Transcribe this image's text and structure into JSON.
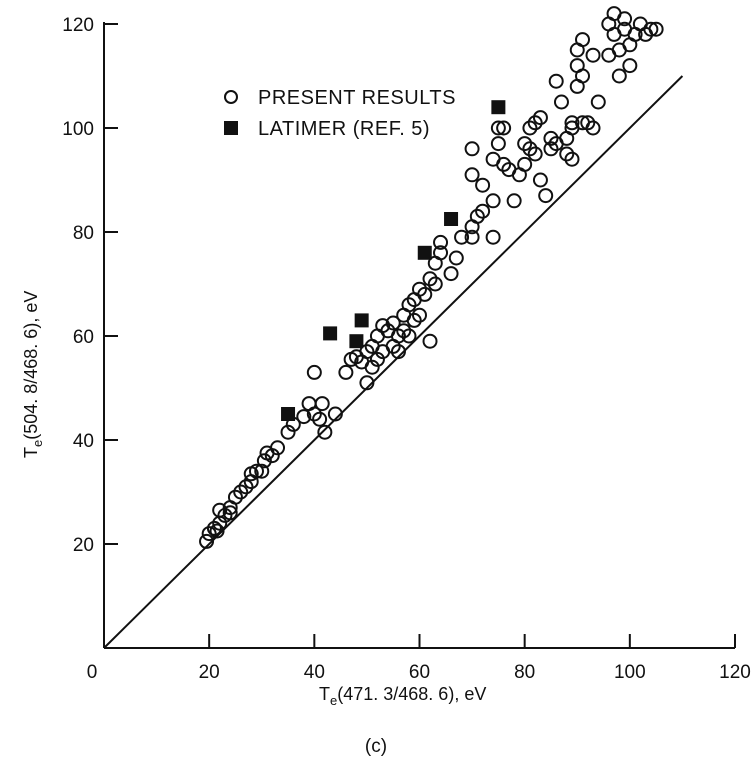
{
  "chart_data": {
    "type": "scatter",
    "x_title_main": "T",
    "x_title_sub": "e",
    "x_title_rest": "(471. 3/468. 6), eV",
    "y_title_main": "T",
    "y_title_sub": "e",
    "y_title_rest": "(504. 8/468. 6), eV",
    "caption": "(c)",
    "xlim": [
      0,
      120
    ],
    "ylim": [
      0,
      120
    ],
    "x_ticks": [
      0,
      20,
      40,
      60,
      80,
      100,
      120
    ],
    "y_ticks": [
      20,
      40,
      60,
      80,
      100,
      120
    ],
    "grid": false,
    "legend_position": "top-left",
    "reference_line": {
      "x": [
        0,
        110
      ],
      "y": [
        0,
        110
      ]
    },
    "series": [
      {
        "name": "PRESENT RESULTS",
        "marker": "open-circle",
        "points": [
          [
            19.5,
            20.5
          ],
          [
            20,
            22
          ],
          [
            21,
            23
          ],
          [
            21.5,
            22.5
          ],
          [
            22,
            24
          ],
          [
            22,
            26.5
          ],
          [
            23,
            25.5
          ],
          [
            24,
            26
          ],
          [
            24,
            27
          ],
          [
            25,
            29
          ],
          [
            26,
            30
          ],
          [
            27,
            31
          ],
          [
            28,
            32
          ],
          [
            28,
            33.5
          ],
          [
            29,
            34
          ],
          [
            30,
            34
          ],
          [
            30.5,
            36
          ],
          [
            31,
            37.5
          ],
          [
            32,
            37
          ],
          [
            33,
            38.5
          ],
          [
            35,
            41.5
          ],
          [
            36,
            43
          ],
          [
            38,
            44.5
          ],
          [
            39,
            47
          ],
          [
            40,
            45
          ],
          [
            40,
            53
          ],
          [
            41,
            44
          ],
          [
            41.5,
            47
          ],
          [
            42,
            41.5
          ],
          [
            44,
            45
          ],
          [
            46,
            53
          ],
          [
            47,
            55.5
          ],
          [
            48,
            56
          ],
          [
            49,
            55
          ],
          [
            50,
            57
          ],
          [
            50,
            51
          ],
          [
            51,
            58
          ],
          [
            51,
            54
          ],
          [
            52,
            60
          ],
          [
            52,
            55.5
          ],
          [
            53,
            57
          ],
          [
            53,
            62
          ],
          [
            54,
            61
          ],
          [
            55,
            58
          ],
          [
            55,
            62.5
          ],
          [
            56,
            57
          ],
          [
            56,
            60
          ],
          [
            57,
            61
          ],
          [
            57,
            64
          ],
          [
            58,
            60
          ],
          [
            58,
            66
          ],
          [
            59,
            63
          ],
          [
            59,
            67
          ],
          [
            60,
            64
          ],
          [
            60,
            69
          ],
          [
            61,
            68
          ],
          [
            62,
            59
          ],
          [
            62,
            71
          ],
          [
            63,
            70
          ],
          [
            63,
            74
          ],
          [
            64,
            76
          ],
          [
            64,
            78
          ],
          [
            66,
            72
          ],
          [
            67,
            75
          ],
          [
            68,
            79
          ],
          [
            70,
            79
          ],
          [
            70,
            81
          ],
          [
            70,
            91
          ],
          [
            70,
            96
          ],
          [
            71,
            83
          ],
          [
            72,
            84
          ],
          [
            72,
            89
          ],
          [
            74,
            79
          ],
          [
            74,
            86
          ],
          [
            74,
            94
          ],
          [
            75,
            97
          ],
          [
            75,
            100
          ],
          [
            76,
            93
          ],
          [
            76,
            100
          ],
          [
            77,
            92
          ],
          [
            78,
            86
          ],
          [
            79,
            91
          ],
          [
            80,
            93
          ],
          [
            80,
            97
          ],
          [
            81,
            100
          ],
          [
            81,
            96
          ],
          [
            82,
            101
          ],
          [
            82,
            95
          ],
          [
            83,
            90
          ],
          [
            83,
            102
          ],
          [
            84,
            87
          ],
          [
            85,
            96
          ],
          [
            85,
            98
          ],
          [
            86,
            109
          ],
          [
            86,
            97
          ],
          [
            87,
            105
          ],
          [
            88,
            98
          ],
          [
            88,
            95
          ],
          [
            89,
            100
          ],
          [
            89,
            94
          ],
          [
            89,
            101
          ],
          [
            90,
            108
          ],
          [
            90,
            112
          ],
          [
            90,
            115
          ],
          [
            91,
            110
          ],
          [
            91,
            101
          ],
          [
            91,
            117
          ],
          [
            92,
            101
          ],
          [
            93,
            100
          ],
          [
            93,
            114
          ],
          [
            94,
            105
          ],
          [
            96,
            114
          ],
          [
            96,
            120
          ],
          [
            97,
            122
          ],
          [
            97,
            118
          ],
          [
            98,
            110
          ],
          [
            98,
            115
          ],
          [
            99,
            119
          ],
          [
            99,
            121
          ],
          [
            100,
            116
          ],
          [
            100,
            112
          ],
          [
            101,
            118
          ],
          [
            102,
            120
          ],
          [
            103,
            118
          ],
          [
            104,
            119
          ],
          [
            105,
            119
          ]
        ]
      },
      {
        "name": "LATIMER (REF. 5)",
        "marker": "filled-square",
        "points": [
          [
            35,
            45
          ],
          [
            43,
            60.5
          ],
          [
            48,
            59
          ],
          [
            49,
            63
          ],
          [
            61,
            76
          ],
          [
            66,
            82.5
          ],
          [
            75,
            104
          ]
        ]
      }
    ]
  }
}
